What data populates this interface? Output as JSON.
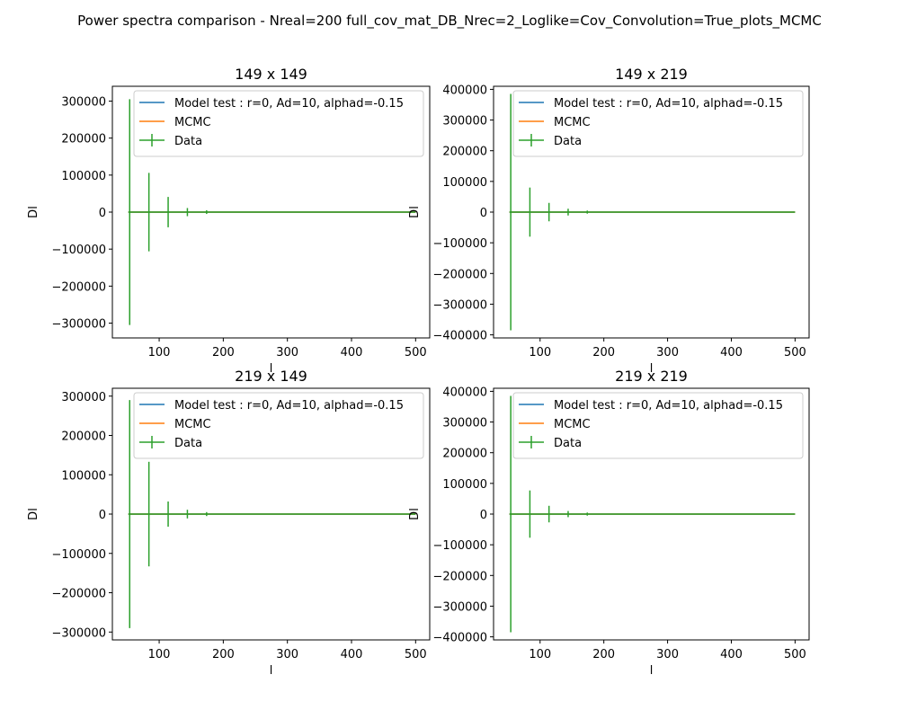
{
  "figure": {
    "suptitle": "Power spectra comparison - Nreal=200 full_cov_mat_DB_Nrec=2_Loglike=Cov_Convolution=True_plots_MCMC"
  },
  "chart_data": [
    {
      "type": "line",
      "title": "149 x 149",
      "xlabel": "l",
      "ylabel": "Dl",
      "xlim": [
        27,
        522
      ],
      "ylim": [
        -340000,
        340000
      ],
      "xticks": [
        100,
        200,
        300,
        400,
        500
      ],
      "yticks": [
        -300000,
        -200000,
        -100000,
        0,
        100000,
        200000,
        300000
      ],
      "ytick_labels": [
        "−300000",
        "−200000",
        "−100000",
        "0",
        "100000",
        "200000",
        "300000"
      ],
      "grid": false,
      "legend_position": "upper right",
      "series": [
        {
          "name": "Model test : r=0, Ad=10, alphad=-0.15",
          "color": "#1f77b4",
          "x": [
            52,
            500
          ],
          "y": [
            0,
            0
          ]
        },
        {
          "name": "MCMC",
          "color": "#ff7f0e",
          "x": [
            52,
            500
          ],
          "y": [
            0,
            0
          ]
        },
        {
          "name": "Data",
          "color": "#2ca02c",
          "x": [
            52,
            500
          ],
          "y": [
            0,
            0
          ],
          "errorbars": [
            {
              "x": 54,
              "y": 0,
              "err": 305000
            },
            {
              "x": 84,
              "y": 0,
              "err": 106000
            },
            {
              "x": 114,
              "y": 0,
              "err": 41000
            },
            {
              "x": 144,
              "y": 0,
              "err": 11000
            },
            {
              "x": 174,
              "y": 0,
              "err": 5000
            }
          ]
        }
      ]
    },
    {
      "type": "line",
      "title": "149 x 219",
      "xlabel": "l",
      "ylabel": "Dl",
      "xlim": [
        27,
        522
      ],
      "ylim": [
        -410000,
        410000
      ],
      "xticks": [
        100,
        200,
        300,
        400,
        500
      ],
      "yticks": [
        -400000,
        -300000,
        -200000,
        -100000,
        0,
        100000,
        200000,
        300000,
        400000
      ],
      "ytick_labels": [
        "−400000",
        "−300000",
        "−200000",
        "−100000",
        "0",
        "100000",
        "200000",
        "300000",
        "400000"
      ],
      "grid": false,
      "legend_position": "upper right",
      "series": [
        {
          "name": "Model test : r=0, Ad=10, alphad=-0.15",
          "color": "#1f77b4",
          "x": [
            52,
            500
          ],
          "y": [
            0,
            0
          ]
        },
        {
          "name": "MCMC",
          "color": "#ff7f0e",
          "x": [
            52,
            500
          ],
          "y": [
            0,
            0
          ]
        },
        {
          "name": "Data",
          "color": "#2ca02c",
          "x": [
            52,
            500
          ],
          "y": [
            0,
            0
          ],
          "errorbars": [
            {
              "x": 54,
              "y": 0,
              "err": 385000
            },
            {
              "x": 84,
              "y": 0,
              "err": 80000
            },
            {
              "x": 114,
              "y": 0,
              "err": 30000
            },
            {
              "x": 144,
              "y": 0,
              "err": 11000
            },
            {
              "x": 174,
              "y": 0,
              "err": 5000
            }
          ]
        }
      ]
    },
    {
      "type": "line",
      "title": "219 x 149",
      "xlabel": "l",
      "ylabel": "Dl",
      "xlim": [
        27,
        522
      ],
      "ylim": [
        -320000,
        320000
      ],
      "xticks": [
        100,
        200,
        300,
        400,
        500
      ],
      "yticks": [
        -300000,
        -200000,
        -100000,
        0,
        100000,
        200000,
        300000
      ],
      "ytick_labels": [
        "−300000",
        "−200000",
        "−100000",
        "0",
        "100000",
        "200000",
        "300000"
      ],
      "grid": false,
      "legend_position": "upper right",
      "series": [
        {
          "name": "Model test : r=0, Ad=10, alphad=-0.15",
          "color": "#1f77b4",
          "x": [
            52,
            500
          ],
          "y": [
            0,
            0
          ]
        },
        {
          "name": "MCMC",
          "color": "#ff7f0e",
          "x": [
            52,
            500
          ],
          "y": [
            0,
            0
          ]
        },
        {
          "name": "Data",
          "color": "#2ca02c",
          "x": [
            52,
            500
          ],
          "y": [
            0,
            0
          ],
          "errorbars": [
            {
              "x": 54,
              "y": 0,
              "err": 290000
            },
            {
              "x": 84,
              "y": 0,
              "err": 133000
            },
            {
              "x": 114,
              "y": 0,
              "err": 32000
            },
            {
              "x": 144,
              "y": 0,
              "err": 11000
            },
            {
              "x": 174,
              "y": 0,
              "err": 5000
            }
          ]
        }
      ]
    },
    {
      "type": "line",
      "title": "219 x 219",
      "xlabel": "l",
      "ylabel": "Dl",
      "xlim": [
        27,
        522
      ],
      "ylim": [
        -410000,
        410000
      ],
      "xticks": [
        100,
        200,
        300,
        400,
        500
      ],
      "yticks": [
        -400000,
        -300000,
        -200000,
        -100000,
        0,
        100000,
        200000,
        300000,
        400000
      ],
      "ytick_labels": [
        "−400000",
        "−300000",
        "−200000",
        "−100000",
        "0",
        "100000",
        "200000",
        "300000",
        "400000"
      ],
      "grid": false,
      "legend_position": "upper right",
      "series": [
        {
          "name": "Model test : r=0, Ad=10, alphad=-0.15",
          "color": "#1f77b4",
          "x": [
            52,
            500
          ],
          "y": [
            0,
            0
          ]
        },
        {
          "name": "MCMC",
          "color": "#ff7f0e",
          "x": [
            52,
            500
          ],
          "y": [
            0,
            0
          ]
        },
        {
          "name": "Data",
          "color": "#2ca02c",
          "x": [
            52,
            500
          ],
          "y": [
            0,
            0
          ],
          "errorbars": [
            {
              "x": 54,
              "y": 0,
              "err": 385000
            },
            {
              "x": 84,
              "y": 0,
              "err": 77000
            },
            {
              "x": 114,
              "y": 0,
              "err": 27000
            },
            {
              "x": 144,
              "y": 0,
              "err": 10000
            },
            {
              "x": 174,
              "y": 0,
              "err": 5000
            }
          ]
        }
      ]
    }
  ]
}
